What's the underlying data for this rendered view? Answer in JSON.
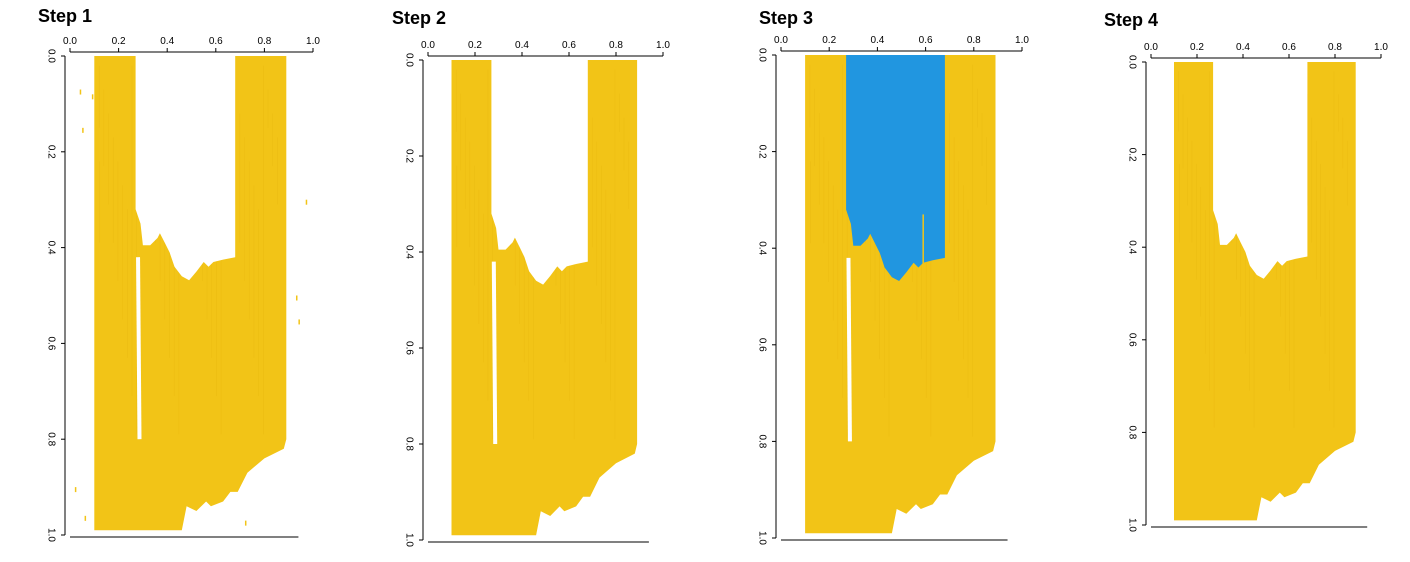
{
  "figure": {
    "panels": [
      {
        "title": "Step 1",
        "step": 1
      },
      {
        "title": "Step 2",
        "step": 2
      },
      {
        "title": "Step 3",
        "step": 3
      },
      {
        "title": "Step 4",
        "step": 4
      }
    ]
  },
  "chart_data": [
    {
      "type": "heatmap",
      "title": "Step 1",
      "x_ticks": [
        "0.0",
        "0.2",
        "0.4",
        "0.6",
        "0.8",
        "1.0"
      ],
      "y_ticks": [
        "0.0",
        "0.2",
        "0.4",
        "0.6",
        "0.8",
        "1.0"
      ],
      "xlim": [
        0,
        1
      ],
      "ylim": [
        0,
        1
      ],
      "y_reversed": true,
      "colors": {
        "mask": "#f2c417",
        "selected": "#2196e0"
      },
      "mask_extent": {
        "x": [
          0.1,
          0.89
        ],
        "y": [
          0.0,
          0.99
        ]
      },
      "white_notch": {
        "x": [
          0.27,
          0.68
        ],
        "y_top": 0.0,
        "y_bottom_range": [
          0.4,
          0.47
        ]
      },
      "white_strip": {
        "x": 0.28,
        "y": [
          0.42,
          0.8
        ]
      },
      "has_noise": true,
      "highlight": false
    },
    {
      "type": "heatmap",
      "title": "Step 2",
      "x_ticks": [
        "0.0",
        "0.2",
        "0.4",
        "0.6",
        "0.8",
        "1.0"
      ],
      "y_ticks": [
        "0.0",
        "0.2",
        "0.4",
        "0.6",
        "0.8",
        "1.0"
      ],
      "xlim": [
        0,
        1
      ],
      "ylim": [
        0,
        1
      ],
      "y_reversed": true,
      "colors": {
        "mask": "#f2c417",
        "selected": "#2196e0"
      },
      "mask_extent": {
        "x": [
          0.1,
          0.89
        ],
        "y": [
          0.0,
          0.99
        ]
      },
      "white_notch": {
        "x": [
          0.27,
          0.68
        ],
        "y_top": 0.0,
        "y_bottom_range": [
          0.4,
          0.47
        ]
      },
      "white_strip": {
        "x": 0.28,
        "y": [
          0.42,
          0.8
        ]
      },
      "has_noise": false,
      "highlight": false
    },
    {
      "type": "heatmap",
      "title": "Step 3",
      "x_ticks": [
        "0.0",
        "0.2",
        "0.4",
        "0.6",
        "0.8",
        "1.0"
      ],
      "y_ticks": [
        "0.0",
        "0.2",
        "0.4",
        "0.6",
        "0.8",
        "1.0"
      ],
      "xlim": [
        0,
        1
      ],
      "ylim": [
        0,
        1
      ],
      "y_reversed": true,
      "colors": {
        "mask": "#f2c417",
        "selected": "#2196e0"
      },
      "mask_extent": {
        "x": [
          0.1,
          0.89
        ],
        "y": [
          0.0,
          0.99
        ]
      },
      "white_notch": {
        "x": [
          0.27,
          0.68
        ],
        "y_top": 0.0,
        "y_bottom_range": [
          0.4,
          0.47
        ]
      },
      "white_strip": {
        "x": 0.28,
        "y": [
          0.42,
          0.8
        ]
      },
      "has_noise": false,
      "highlight": true
    },
    {
      "type": "heatmap",
      "title": "Step 4",
      "x_ticks": [
        "0.0",
        "0.2",
        "0.4",
        "0.6",
        "0.8",
        "1.0"
      ],
      "y_ticks": [
        "0.0",
        "0.2",
        "0.4",
        "0.6",
        "0.8",
        "1.0"
      ],
      "xlim": [
        0,
        1
      ],
      "ylim": [
        0,
        1
      ],
      "y_reversed": true,
      "colors": {
        "mask": "#f2c417",
        "selected": "#2196e0"
      },
      "mask_extent": {
        "x": [
          0.1,
          0.89
        ],
        "y": [
          0.0,
          0.99
        ]
      },
      "white_notch": {
        "x": [
          0.27,
          0.68
        ],
        "y_top": 0.0,
        "y_bottom_range": [
          0.4,
          0.47
        ]
      },
      "white_strip": null,
      "has_noise": false,
      "highlight": false
    }
  ]
}
